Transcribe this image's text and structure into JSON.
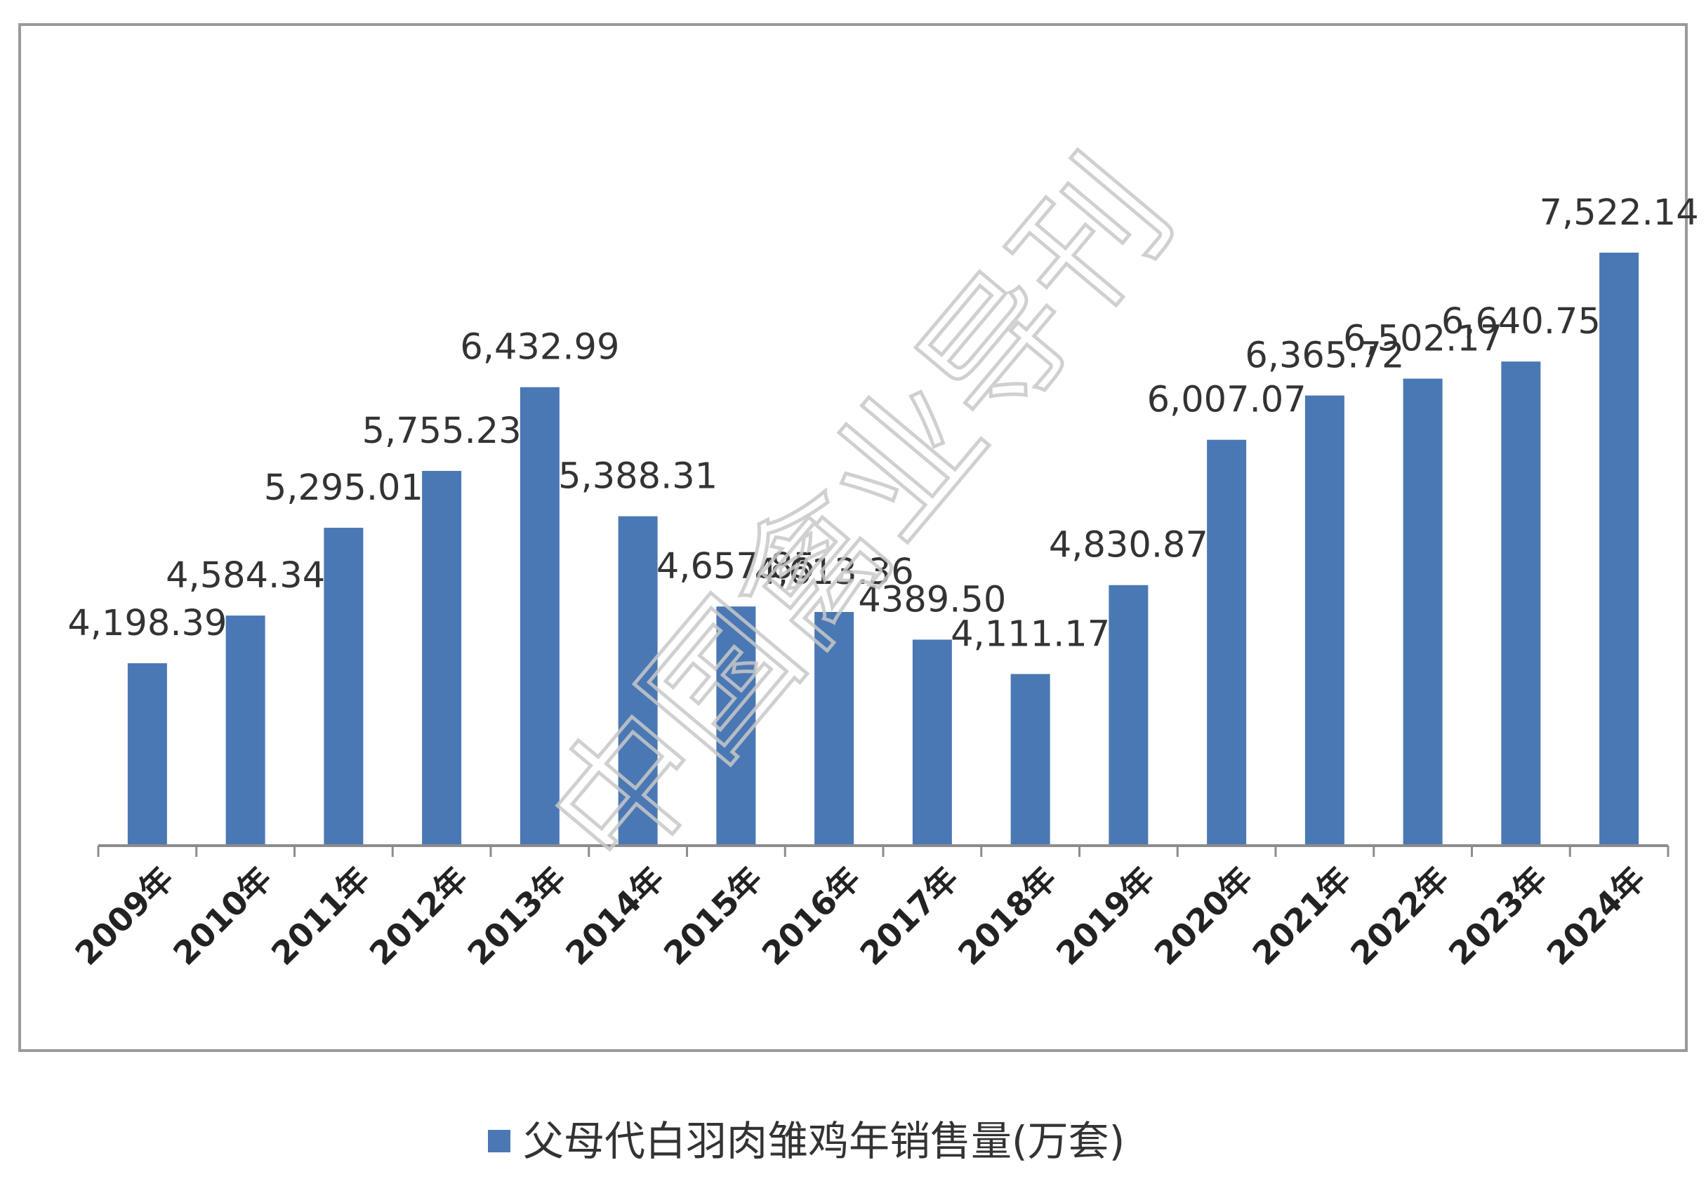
{
  "chart_data": {
    "type": "bar",
    "categories": [
      "2009年",
      "2010年",
      "2011年",
      "2012年",
      "2013年",
      "2014年",
      "2015年",
      "2016年",
      "2017年",
      "2018年",
      "2019年",
      "2020年",
      "2021年",
      "2022年",
      "2023年",
      "2024年"
    ],
    "series": [
      {
        "name": "父母代白羽肉雏鸡年销售量(万套)",
        "values": [
          4198.39,
          4584.34,
          5295.01,
          5755.23,
          6432.99,
          5388.31,
          4657.85,
          4613.36,
          4389.5,
          4111.17,
          4830.87,
          6007.07,
          6365.72,
          6502.17,
          6640.75,
          7522.14
        ],
        "labels": [
          "4,198.39",
          "4,584.34",
          "5,295.01",
          "5,755.23",
          "6,432.99",
          "5,388.31",
          "4,657.85",
          "4,613.36",
          "4389.50",
          "4,111.17",
          "4,830.87",
          "6,007.07",
          "6,365.72",
          "6,502.17",
          "6,640.75",
          "7,522.14"
        ],
        "color": "#4a78b4"
      }
    ],
    "legend_position": "bottom",
    "grid": false
  },
  "watermark": "中国禽业导刊"
}
